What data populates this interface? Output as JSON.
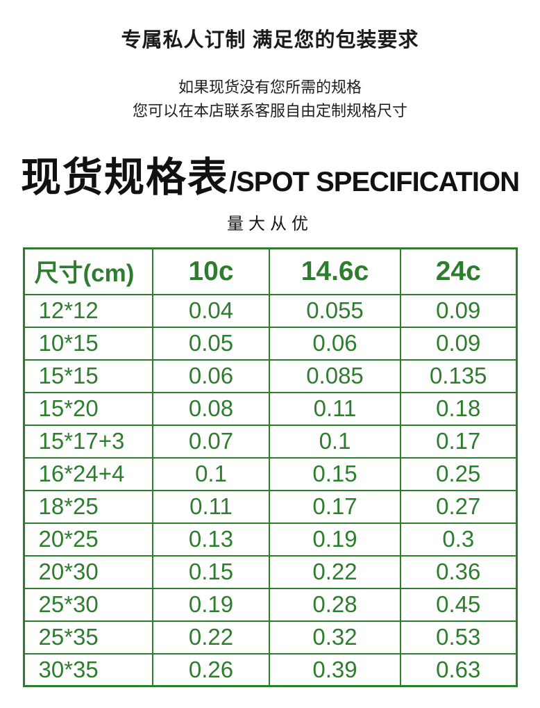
{
  "header": {
    "heading": "专属私人订制 满足您的包装要求",
    "subtext_line1": "如果现货没有您所需的规格",
    "subtext_line2": "您可以在本店联系客服自由定制规格尺寸",
    "title_cn": "现货规格表",
    "title_en": "/SPOT SPECIFICATION",
    "tagline": "量大从优"
  },
  "colors": {
    "accent_green": "#2e7d2e",
    "text_black": "#1a1a1a"
  },
  "chart_data": {
    "type": "table",
    "title": "现货规格表/SPOT SPECIFICATION",
    "subtitle": "量大从优",
    "columns": [
      "尺寸(cm)",
      "10c",
      "14.6c",
      "24c"
    ],
    "rows": [
      [
        "12*12",
        "0.04",
        "0.055",
        "0.09"
      ],
      [
        "10*15",
        "0.05",
        "0.06",
        "0.09"
      ],
      [
        "15*15",
        "0.06",
        "0.085",
        "0.135"
      ],
      [
        "15*20",
        "0.08",
        "0.11",
        "0.18"
      ],
      [
        "15*17+3",
        "0.07",
        "0.1",
        "0.17"
      ],
      [
        "16*24+4",
        "0.1",
        "0.15",
        "0.25"
      ],
      [
        "18*25",
        "0.11",
        "0.17",
        "0.27"
      ],
      [
        "20*25",
        "0.13",
        "0.19",
        "0.3"
      ],
      [
        "20*30",
        "0.15",
        "0.22",
        "0.36"
      ],
      [
        "25*30",
        "0.19",
        "0.28",
        "0.45"
      ],
      [
        "25*35",
        "0.22",
        "0.32",
        "0.53"
      ],
      [
        "30*35",
        "0.26",
        "0.39",
        "0.63"
      ]
    ]
  }
}
